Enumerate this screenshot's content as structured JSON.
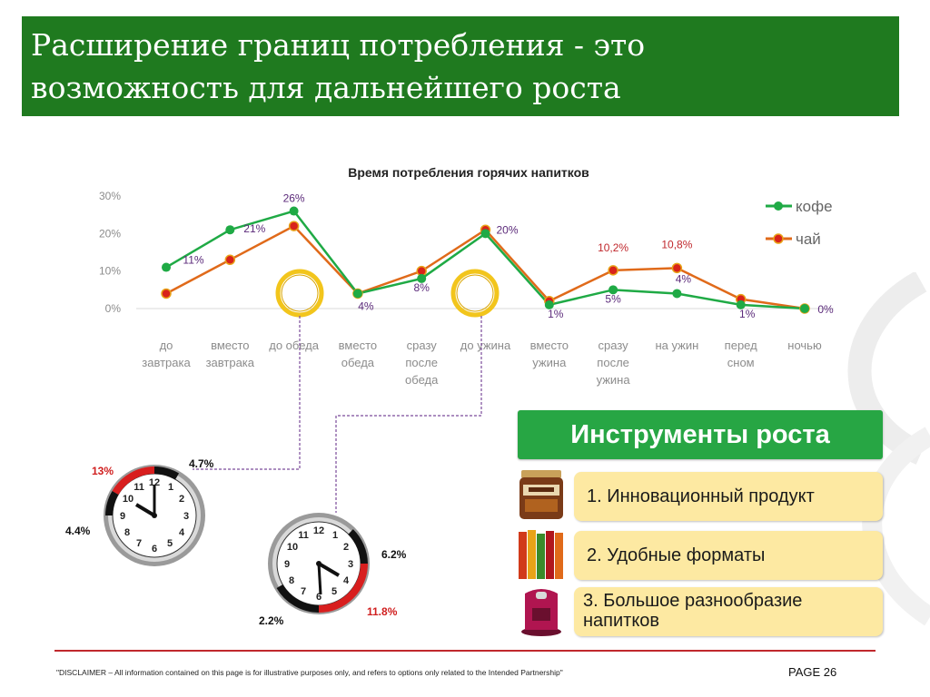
{
  "header": {
    "title_line1": "Расширение границ потребления  - это",
    "title_line2": "возможность для дальнейшего роста"
  },
  "chart_data": {
    "type": "line",
    "title": "Время потребления горячих напитков",
    "categories": [
      [
        "до",
        "завтрака"
      ],
      [
        "вместо",
        "завтрака"
      ],
      [
        "до обеда"
      ],
      [
        "вместо",
        "обеда"
      ],
      [
        "сразу",
        "после",
        "обеда"
      ],
      [
        "до ужина"
      ],
      [
        "вместо",
        "ужина"
      ],
      [
        "сразу",
        "после",
        "ужина"
      ],
      [
        "на ужин"
      ],
      [
        "перед",
        "сном"
      ],
      [
        "ночью"
      ]
    ],
    "ylim": [
      0,
      30
    ],
    "yticks": [
      "0%",
      "10%",
      "20%",
      "30%"
    ],
    "legend_position": "top-right",
    "series": [
      {
        "name": "кофе",
        "color": "#1faa45",
        "values": [
          11,
          21,
          26,
          4,
          8,
          20,
          1,
          5,
          4,
          1,
          0
        ]
      },
      {
        "name": "чай",
        "color": "#e06a1a",
        "values": [
          4,
          13,
          22,
          4,
          10,
          21,
          2,
          10.2,
          10.8,
          2.5,
          0
        ]
      }
    ],
    "data_labels": [
      {
        "category": 0,
        "text": "11%",
        "color": "#5b2a7a"
      },
      {
        "category": 1,
        "text": "21%",
        "color": "#5b2a7a"
      },
      {
        "category": 2,
        "text": "26%",
        "color": "#5b2a7a"
      },
      {
        "category": 3,
        "text": "4%",
        "color": "#5b2a7a"
      },
      {
        "category": 4,
        "text": "8%",
        "color": "#5b2a7a"
      },
      {
        "category": 5,
        "text": "20%",
        "color": "#5b2a7a"
      },
      {
        "category": 6,
        "text": "1%",
        "color": "#5b2a7a"
      },
      {
        "category": 7,
        "text": "10,2%",
        "color": "#c0282d"
      },
      {
        "category": 7,
        "text": "5%",
        "color": "#5b2a7a"
      },
      {
        "category": 8,
        "text": "10,8%",
        "color": "#c0282d"
      },
      {
        "category": 8,
        "text": "4%",
        "color": "#5b2a7a"
      },
      {
        "category": 9,
        "text": "1%",
        "color": "#5b2a7a"
      },
      {
        "category": 10,
        "text": "0%",
        "color": "#5b2a7a"
      }
    ]
  },
  "clocks": [
    {
      "name": "lunch",
      "values": [
        {
          "text": "13%",
          "color": "#d01f1f"
        },
        {
          "text": "4.7%",
          "color": "#111111"
        },
        {
          "text": "4.4%",
          "color": "#111111"
        }
      ]
    },
    {
      "name": "dinner",
      "values": [
        {
          "text": "6.2%",
          "color": "#111111"
        },
        {
          "text": "11.8%",
          "color": "#d01f1f"
        },
        {
          "text": "2.2%",
          "color": "#111111"
        }
      ]
    }
  ],
  "tools": {
    "title": "Инструменты роста",
    "items": [
      {
        "label": "1. Инновационный продукт",
        "icon": "jacobs-velour-jar-icon"
      },
      {
        "label": "2. Удобные форматы",
        "icon": "coffee-sticks-icon"
      },
      {
        "label": "3. Большое разнообразие напитков",
        "icon": "coffee-machine-icon"
      }
    ]
  },
  "footer": {
    "disclaimer": "\"DISCLAIMER – All information contained on this page is for illustrative purposes only, and refers to options only related to the Intended Partnership\"",
    "page": "PAGE 26"
  }
}
